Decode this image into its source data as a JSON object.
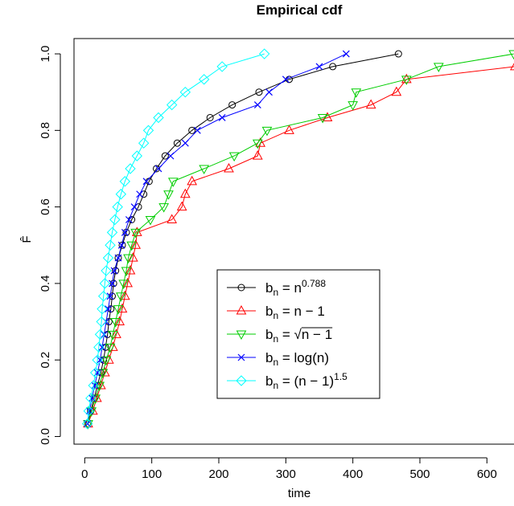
{
  "chart_data": {
    "type": "line",
    "title": "Empirical cdf",
    "xlabel": "time",
    "ylabel": "F̂",
    "xlim": [
      -16,
      656
    ],
    "ylim": [
      -0.02,
      1.04
    ],
    "x_ticks": [
      0,
      100,
      200,
      300,
      400,
      500,
      600
    ],
    "y_ticks": [
      0.0,
      0.2,
      0.4,
      0.6,
      0.8,
      1.0
    ],
    "x_tick_labels": [
      "0",
      "100",
      "200",
      "300",
      "400",
      "500",
      "600"
    ],
    "y_tick_labels": [
      "0.0",
      "0.2",
      "0.4",
      "0.6",
      "0.8",
      "1.0"
    ],
    "grid": false,
    "legend_position": "center-right",
    "series": [
      {
        "name": "b_n = n^0.788",
        "legend": {
          "pre": "b",
          "sub": "n",
          "mid": " = n",
          "sup": "0.788",
          "post": ""
        },
        "color": "#000000",
        "marker": "circle",
        "y": [
          0.0333,
          0.0667,
          0.1,
          0.1333,
          0.1667,
          0.2,
          0.2333,
          0.2667,
          0.3,
          0.3333,
          0.3667,
          0.4,
          0.4333,
          0.4667,
          0.5,
          0.5333,
          0.5667,
          0.6,
          0.6333,
          0.6667,
          0.7,
          0.7333,
          0.7667,
          0.8,
          0.8333,
          0.8667,
          0.9,
          0.9333,
          0.9667,
          1.0
        ],
        "x": [
          5,
          9,
          14,
          19,
          24,
          28,
          31,
          34,
          36,
          39,
          41,
          43,
          46,
          50,
          56,
          62,
          70,
          80,
          88,
          96,
          107,
          120,
          138,
          160,
          187,
          220,
          260,
          305,
          370,
          468
        ]
      },
      {
        "name": "b_n = n − 1",
        "legend": {
          "pre": "b",
          "sub": "n",
          "mid": " = n − 1",
          "sup": "",
          "post": ""
        },
        "color": "#ff0000",
        "marker": "triangle-up",
        "y": [
          0.0333,
          0.0667,
          0.1,
          0.1333,
          0.1667,
          0.2,
          0.2333,
          0.2667,
          0.3,
          0.3333,
          0.3667,
          0.4,
          0.4333,
          0.4667,
          0.5,
          0.5333,
          0.5667,
          0.6,
          0.6333,
          0.6667,
          0.7,
          0.7333,
          0.7667,
          0.8,
          0.8333,
          0.8667,
          0.9,
          0.9333,
          0.9667,
          1.0
        ],
        "x": [
          5,
          12,
          18,
          24,
          30,
          36,
          42,
          47,
          52,
          56,
          60,
          64,
          68,
          72,
          76,
          78,
          130,
          145,
          150,
          160,
          215,
          258,
          262,
          305,
          362,
          427,
          465,
          480,
          642,
          648
        ]
      },
      {
        "name": "b_n = √(n − 1)",
        "legend": {
          "pre": "b",
          "sub": "n",
          "mid": " = ",
          "sup": "",
          "post": "",
          "sqrt": "n − 1"
        },
        "color": "#00cd00",
        "marker": "triangle-down",
        "y": [
          0.0333,
          0.0667,
          0.1,
          0.1333,
          0.1667,
          0.2,
          0.2333,
          0.2667,
          0.3,
          0.3333,
          0.3667,
          0.4,
          0.4333,
          0.4667,
          0.5,
          0.5333,
          0.5667,
          0.6,
          0.6333,
          0.6667,
          0.7,
          0.7333,
          0.7667,
          0.8,
          0.8333,
          0.8667,
          0.9,
          0.9333,
          0.9667,
          1.0
        ],
        "x": [
          5,
          10,
          16,
          22,
          27,
          32,
          38,
          42,
          46,
          50,
          54,
          58,
          62,
          65,
          70,
          76,
          98,
          118,
          125,
          132,
          178,
          223,
          258,
          272,
          355,
          400,
          405,
          480,
          528,
          640
        ]
      },
      {
        "name": "b_n = log(n)",
        "legend": {
          "pre": "b",
          "sub": "n",
          "mid": " = log(n)",
          "sup": "",
          "post": ""
        },
        "color": "#0000ff",
        "marker": "x",
        "y": [
          0.0333,
          0.0667,
          0.1,
          0.1333,
          0.1667,
          0.2,
          0.2333,
          0.2667,
          0.3,
          0.3333,
          0.3667,
          0.4,
          0.4333,
          0.4667,
          0.5,
          0.5333,
          0.5667,
          0.6,
          0.6333,
          0.6667,
          0.7,
          0.7333,
          0.7667,
          0.8,
          0.8333,
          0.8667,
          0.9,
          0.9333,
          0.9667,
          1.0
        ],
        "x": [
          4,
          7,
          11,
          15,
          19,
          23,
          26,
          29,
          32,
          35,
          38,
          41,
          44,
          50,
          55,
          60,
          66,
          74,
          82,
          92,
          110,
          128,
          150,
          168,
          205,
          258,
          275,
          300,
          350,
          390
        ]
      },
      {
        "name": "b_n = (n − 1)^1.5",
        "legend": {
          "pre": "b",
          "sub": "n",
          "mid": " = (n − 1)",
          "sup": "1.5",
          "post": ""
        },
        "color": "#00ffff",
        "marker": "diamond",
        "y": [
          0.0333,
          0.0667,
          0.1,
          0.1333,
          0.1667,
          0.2,
          0.2333,
          0.2667,
          0.3,
          0.3333,
          0.3667,
          0.4,
          0.4333,
          0.4667,
          0.5,
          0.5333,
          0.5667,
          0.6,
          0.6333,
          0.6667,
          0.7,
          0.7333,
          0.7667,
          0.8,
          0.8333,
          0.8667,
          0.9,
          0.9333,
          0.9667,
          1.0
        ],
        "x": [
          4,
          6,
          9,
          13,
          16,
          19,
          21,
          23,
          25,
          26,
          28,
          30,
          32,
          35,
          38,
          41,
          45,
          49,
          54,
          60,
          68,
          78,
          88,
          95,
          110,
          130,
          150,
          178,
          205,
          268
        ]
      }
    ]
  }
}
